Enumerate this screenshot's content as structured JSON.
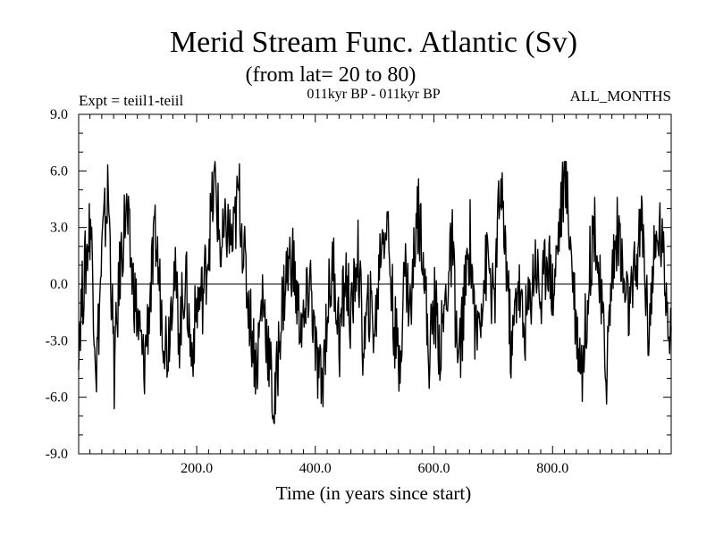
{
  "chart_data": {
    "type": "line",
    "title": "Merid Stream Func. Atlantic (Sv)",
    "subtitle": "(from lat= 20 to 80)",
    "left_label": "Expt = teiil1-teiil",
    "center_label": "011kyr BP - 011kyr BP",
    "right_label": "ALL_MONTHS",
    "xlabel": "Time (in years since start)",
    "ylabel": "",
    "xlim": [
      1,
      1000
    ],
    "ylim": [
      -9.0,
      9.0
    ],
    "x_ticks": [
      "200.0",
      "400.0",
      "600.0",
      "800.0"
    ],
    "y_ticks": [
      "-9.0",
      "-6.0",
      "-3.0",
      "0.0",
      "3.0",
      "6.0",
      "9.0"
    ],
    "zero_line": true,
    "grid": false,
    "series": [
      {
        "x": [
          1,
          11,
          21,
          31,
          41,
          51,
          61,
          71,
          81,
          91,
          101,
          111,
          121,
          131,
          141,
          151,
          161,
          171,
          181,
          191,
          201,
          211,
          221,
          231,
          241,
          251,
          261,
          271,
          281,
          291,
          301,
          311,
          321,
          331,
          341,
          351,
          361,
          371,
          381,
          391,
          401,
          411,
          421,
          431,
          441,
          451,
          461,
          471,
          481,
          491,
          501,
          511,
          521,
          531,
          541,
          551,
          561,
          571,
          581,
          591,
          601,
          611,
          621,
          631,
          641,
          651,
          661,
          671,
          681,
          691,
          701,
          711,
          721,
          731,
          741,
          751,
          761,
          771,
          781,
          791,
          801,
          811,
          821,
          831,
          841,
          851,
          861,
          871,
          881,
          891,
          901,
          911,
          921,
          931,
          941,
          951,
          961,
          971,
          981,
          991,
          1000
        ],
        "values": [
          -2.5,
          0.5,
          3.5,
          -4.5,
          2.0,
          5.0,
          -4.8,
          1.0,
          4.0,
          0.5,
          -2.0,
          -4.5,
          -0.8,
          2.5,
          -1.5,
          -3.5,
          1.0,
          -2.5,
          0.5,
          -3.8,
          -1.0,
          -0.5,
          2.5,
          5.5,
          1.5,
          3.0,
          2.0,
          5.0,
          1.0,
          -2.0,
          -4.5,
          -0.5,
          -3.5,
          -7.0,
          -2.0,
          0.5,
          1.5,
          -1.5,
          -2.5,
          0.5,
          -4.0,
          -5.5,
          -1.0,
          1.0,
          -3.0,
          0.5,
          -2.0,
          2.0,
          -3.5,
          -1.0,
          -2.5,
          2.5,
          3.5,
          -1.5,
          -4.5,
          1.0,
          -1.5,
          4.0,
          2.5,
          -4.0,
          -1.0,
          -3.5,
          -0.5,
          2.0,
          -4.5,
          -1.0,
          2.5,
          -3.0,
          -0.5,
          1.5,
          -1.5,
          5.0,
          2.0,
          -4.0,
          0.5,
          -2.5,
          -1.0,
          1.5,
          -1.0,
          2.0,
          -0.5,
          3.0,
          6.0,
          2.0,
          -2.5,
          -4.5,
          0.5,
          3.5,
          -1.0,
          -4.5,
          1.0,
          3.0,
          -0.5,
          -1.5,
          1.0,
          3.5,
          -2.5,
          1.0,
          3.0,
          0.0,
          -2.5
        ]
      }
    ]
  }
}
